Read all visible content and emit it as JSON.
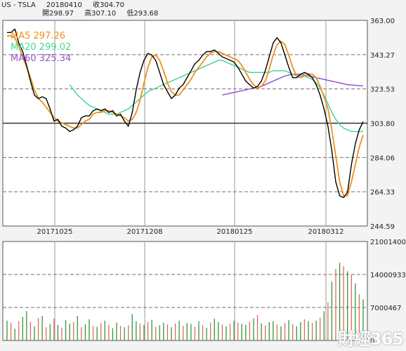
{
  "header": {
    "symbol": "US - TSLA",
    "date": "20180410",
    "close_label": "收304.70",
    "open_label": "開298.97",
    "high_label": "高307.10",
    "low_label": "低293.68"
  },
  "legend": [
    {
      "label": "MA5 297.26",
      "color": "#f0901a"
    },
    {
      "label": "MA20 299.02",
      "color": "#48d896"
    },
    {
      "label": "MA60 325.34",
      "color": "#9a50c8"
    }
  ],
  "watermark": "財經365",
  "colors": {
    "price": "#000000",
    "ma5": "#f0901a",
    "ma20": "#48d896",
    "ma60": "#9a50c8",
    "vol_up": "#2e9a2e",
    "vol_down": "#e06666",
    "grid": "#707070"
  },
  "chart_data": [
    {
      "type": "line",
      "x_ticks": [
        "20171025",
        "20171208",
        "20180125",
        "20180312"
      ],
      "y_ticks": [
        "363.00",
        "343.27",
        "323.53",
        "303.80",
        "284.06",
        "264.33",
        "244.59"
      ],
      "ylim": [
        244.59,
        363.0
      ],
      "reference_line": 303.8,
      "grid": true,
      "series": [
        {
          "name": "MA5",
          "values": [
            354,
            354,
            353,
            348,
            342,
            336,
            330,
            323,
            318,
            316,
            313,
            310,
            307,
            305,
            304,
            303,
            302,
            301,
            301,
            303,
            305,
            306,
            309,
            310,
            310,
            311,
            311,
            310,
            309,
            308,
            307,
            305,
            306,
            310,
            317,
            327,
            336,
            342,
            343,
            340,
            334,
            327,
            322,
            320,
            320,
            323,
            326,
            329,
            333,
            336,
            339,
            342,
            344,
            345,
            345,
            344,
            343,
            342,
            341,
            340,
            337,
            333,
            329,
            326,
            324,
            325,
            328,
            335,
            343,
            349,
            351,
            349,
            343,
            336,
            331,
            330,
            331,
            332,
            332,
            330,
            325,
            319,
            312,
            300,
            285,
            270,
            262,
            262,
            270,
            280,
            290,
            297
          ]
        },
        {
          "name": "MA20",
          "values": [
            null,
            null,
            null,
            null,
            null,
            null,
            null,
            null,
            null,
            null,
            null,
            null,
            null,
            null,
            null,
            null,
            326,
            323,
            320,
            318,
            316,
            314,
            313,
            312,
            311,
            310,
            309,
            309,
            309,
            310,
            311,
            312,
            314,
            316,
            318,
            320,
            322,
            323,
            324,
            325,
            326,
            327,
            328,
            329,
            330,
            331,
            332,
            333,
            334,
            335,
            336,
            337,
            338,
            339,
            340,
            340,
            339,
            338,
            337,
            336,
            335,
            334,
            333,
            333,
            333,
            333,
            333,
            333,
            334,
            334,
            334,
            334,
            333,
            332,
            331,
            331,
            331,
            330,
            329,
            327,
            324,
            320,
            315,
            310,
            306,
            303,
            301,
            300,
            299,
            299,
            299,
            299
          ]
        },
        {
          "name": "MA60",
          "values": [
            null,
            null,
            null,
            null,
            null,
            null,
            null,
            null,
            null,
            null,
            null,
            null,
            null,
            null,
            null,
            null,
            null,
            null,
            null,
            null,
            null,
            null,
            null,
            null,
            null,
            null,
            null,
            null,
            null,
            null,
            null,
            null,
            null,
            null,
            null,
            null,
            null,
            null,
            null,
            null,
            null,
            null,
            null,
            null,
            null,
            null,
            null,
            null,
            null,
            null,
            null,
            null,
            null,
            null,
            null,
            320,
            320.5,
            321,
            321.5,
            322,
            322.5,
            323,
            323.5,
            324,
            324.5,
            325,
            326,
            327,
            328,
            329,
            330,
            331,
            331.5,
            332,
            332,
            332,
            331.5,
            331,
            330.5,
            330,
            329.5,
            329,
            328.5,
            328,
            327.5,
            327,
            326.5,
            326,
            325.8,
            325.6,
            325.4,
            325.3
          ]
        },
        {
          "name": "Price",
          "values": [
            356,
            356,
            358,
            350,
            345,
            337,
            328,
            320,
            318,
            319,
            318,
            312,
            305,
            306,
            302,
            301,
            299,
            300,
            302,
            307,
            308,
            308,
            311,
            312,
            311,
            312,
            310,
            311,
            308,
            309,
            305,
            302,
            310,
            323,
            333,
            340,
            344,
            343,
            340,
            333,
            326,
            322,
            318,
            320,
            324,
            326,
            330,
            334,
            338,
            340,
            343,
            345,
            345,
            346,
            344,
            342,
            341,
            340,
            339,
            336,
            332,
            328,
            326,
            324,
            325,
            328,
            334,
            342,
            350,
            353,
            350,
            343,
            336,
            330,
            330,
            332,
            333,
            332,
            330,
            326,
            320,
            312,
            302,
            288,
            270,
            262,
            261,
            264,
            280,
            292,
            300,
            304.7
          ]
        }
      ]
    },
    {
      "type": "bar",
      "y_ticks": [
        "21001400",
        "14000933",
        "7000467",
        "0"
      ],
      "ylim": [
        0,
        21001400
      ],
      "grid": true,
      "series": [
        {
          "name": "Volume",
          "values": [
            4200000,
            3800000,
            2500000,
            4100000,
            5000000,
            6200000,
            3900000,
            3000000,
            4800000,
            5200000,
            2800000,
            3500000,
            4600000,
            3300000,
            2700000,
            4300000,
            3600000,
            3900000,
            5200000,
            2800000,
            3400000,
            4500000,
            3100000,
            2900000,
            3700000,
            4200000,
            3300000,
            2600000,
            3800000,
            3100000,
            2800000,
            3200000,
            5600000,
            4100000,
            3600000,
            3300000,
            3900000,
            4400000,
            2900000,
            3200000,
            3800000,
            3400000,
            2800000,
            3600000,
            4200000,
            3100000,
            3700000,
            3500000,
            2900000,
            4100000,
            3300000,
            2700000,
            3800000,
            4600000,
            3900000,
            3400000,
            3000000,
            3600000,
            4200000,
            3800000,
            3500000,
            3300000,
            4000000,
            4700000,
            5400000,
            3600000,
            3200000,
            3900000,
            4100000,
            3400000,
            3000000,
            3700000,
            4300000,
            3500000,
            3000000,
            3900000,
            4500000,
            4100000,
            3700000,
            4200000,
            4800000,
            6200000,
            8100000,
            12500000,
            15200000,
            16500000,
            15800000,
            14700000,
            13900000,
            12100000,
            9800000,
            8700000
          ]
        },
        {
          "name": "Direction",
          "values": [
            1,
            0,
            1,
            0,
            1,
            1,
            0,
            1,
            0,
            1,
            0,
            1,
            0,
            1,
            0,
            1,
            1,
            0,
            1,
            0,
            1,
            1,
            0,
            1,
            0,
            1,
            0,
            1,
            1,
            0,
            1,
            0,
            1,
            1,
            0,
            1,
            0,
            1,
            0,
            1,
            1,
            0,
            1,
            0,
            1,
            0,
            1,
            1,
            0,
            1,
            0,
            1,
            0,
            1,
            1,
            0,
            1,
            0,
            1,
            0,
            1,
            1,
            0,
            1,
            0,
            1,
            0,
            1,
            1,
            0,
            1,
            0,
            1,
            0,
            1,
            1,
            0,
            1,
            0,
            1,
            0,
            1,
            0,
            1,
            0,
            1,
            0,
            1,
            0,
            1,
            0,
            1
          ]
        }
      ]
    }
  ]
}
